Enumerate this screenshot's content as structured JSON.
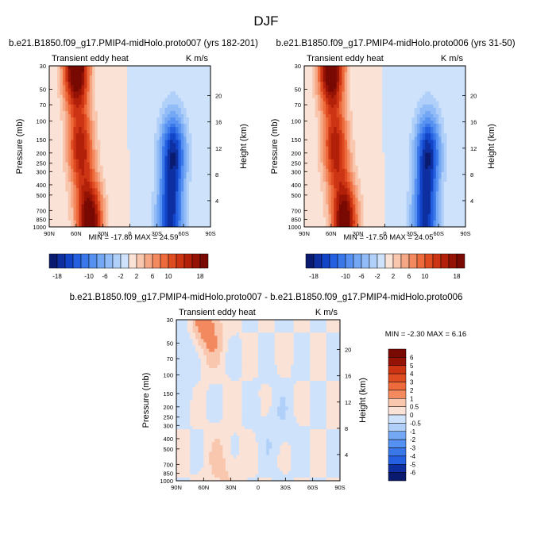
{
  "figure": {
    "title": "DJF",
    "pressure_label": "Pressure (mb)",
    "height_label": "Height (km)"
  },
  "chart_data": [
    {
      "type": "heatmap",
      "panel": "top-left",
      "title": "b.e21.B1850.f09_g17.PMIP4-midHolo.proto007 (yrs 182-201)",
      "left_string": "Transient eddy heat",
      "right_string": "K m/s",
      "xlabel": "",
      "x_ticks": [
        "90N",
        "60N",
        "30N",
        "0",
        "30S",
        "60S",
        "90S"
      ],
      "ylabel": "Pressure (mb)",
      "y_ticks": [
        30,
        50,
        70,
        100,
        150,
        200,
        250,
        300,
        400,
        500,
        700,
        850,
        1000
      ],
      "y2label": "Height (km)",
      "y2_ticks": [
        4,
        8,
        12,
        16,
        20
      ],
      "min": -17.8,
      "max": 24.59,
      "minmax_text": "MIN = -17.80   MAX =  24.59",
      "contour_levels": [
        -18,
        -16,
        -14,
        -12,
        -10,
        -8,
        -6,
        -4,
        -2,
        0,
        2,
        4,
        6,
        8,
        10,
        12,
        14,
        16,
        18
      ],
      "colorbar_labels": [
        "-18",
        "-10",
        "-6",
        "-2",
        "2",
        "6",
        "10",
        "18"
      ],
      "features": [
        {
          "lat": 60,
          "p": 30,
          "value": 24
        },
        {
          "lat": 55,
          "p": 180,
          "value": 15
        },
        {
          "lat": 45,
          "p": 900,
          "value": 22
        },
        {
          "lat": -48,
          "p": 200,
          "value": -17
        },
        {
          "lat": -45,
          "p": 850,
          "value": -16
        }
      ]
    },
    {
      "type": "heatmap",
      "panel": "top-right",
      "title": "b.e21.B1850.f09_g17.PMIP4-midHolo.proto006 (yrs 31-50)",
      "left_string": "Transient eddy heat",
      "right_string": "K m/s",
      "xlabel": "",
      "x_ticks": [
        "90N",
        "60N",
        "30N",
        "0",
        "30S",
        "60S",
        "90S"
      ],
      "ylabel": "Pressure (mb)",
      "y_ticks": [
        30,
        50,
        70,
        100,
        150,
        200,
        250,
        300,
        400,
        500,
        700,
        850,
        1000
      ],
      "y2label": "Height (km)",
      "y2_ticks": [
        4,
        8,
        12,
        16,
        20
      ],
      "min": -17.5,
      "max": 24.05,
      "minmax_text": "MIN = -17.50   MAX =  24.05",
      "contour_levels": [
        -18,
        -16,
        -14,
        -12,
        -10,
        -8,
        -6,
        -4,
        -2,
        0,
        2,
        4,
        6,
        8,
        10,
        12,
        14,
        16,
        18
      ],
      "colorbar_labels": [
        "-18",
        "-10",
        "-6",
        "-2",
        "2",
        "6",
        "10",
        "18"
      ],
      "features": [
        {
          "lat": 60,
          "p": 30,
          "value": 23.5
        },
        {
          "lat": 55,
          "p": 180,
          "value": 15
        },
        {
          "lat": 45,
          "p": 900,
          "value": 21
        },
        {
          "lat": -48,
          "p": 200,
          "value": -17
        },
        {
          "lat": -45,
          "p": 850,
          "value": -16
        }
      ]
    },
    {
      "type": "heatmap",
      "panel": "bottom",
      "title": "b.e21.B1850.f09_g17.PMIP4-midHolo.proto007 - b.e21.B1850.f09_g17.PMIP4-midHolo.proto006",
      "left_string": "Transient eddy heat",
      "right_string": "K m/s",
      "xlabel": "",
      "x_ticks": [
        "90N",
        "60N",
        "30N",
        "0",
        "30S",
        "60S",
        "90S"
      ],
      "ylabel": "Pressure (mb)",
      "y_ticks": [
        30,
        50,
        70,
        100,
        150,
        200,
        250,
        300,
        400,
        500,
        700,
        850,
        1000
      ],
      "y2label": "Height (km)",
      "y2_ticks": [
        4,
        8,
        12,
        16,
        20
      ],
      "min": -2.3,
      "max": 6.16,
      "minmax_text": "MIN = -2.30   MAX =  6.16",
      "contour_levels": [
        -6,
        -5,
        -4,
        -3,
        -2,
        -1,
        -0.5,
        0,
        0.5,
        1,
        2,
        3,
        4,
        5,
        6
      ],
      "colorbar_labels": [
        "6",
        "5",
        "4",
        "3",
        "2",
        "1",
        "0.5",
        "0",
        "-0.5",
        "-1",
        "-2",
        "-3",
        "-4",
        "-5",
        "-6"
      ],
      "features": [
        {
          "lat": 58,
          "p": 35,
          "value": 1.5
        },
        {
          "lat": 80,
          "p": 60,
          "value": -0.7
        },
        {
          "lat": 40,
          "p": 800,
          "value": 0.6
        },
        {
          "lat": -20,
          "p": 300,
          "value": -0.4
        }
      ]
    }
  ],
  "colors": {
    "diverging_21": [
      "#0a1a6e",
      "#0d2fa0",
      "#1244c8",
      "#2460e0",
      "#3a78ea",
      "#5690f0",
      "#74a8f4",
      "#92bcf7",
      "#b0d0f9",
      "#cee2fb",
      "#fbe2d6",
      "#f9c6ae",
      "#f6a886",
      "#f2895f",
      "#ec6a3c",
      "#e04c22",
      "#cc3414",
      "#b2200a",
      "#951305",
      "#780903"
    ]
  }
}
